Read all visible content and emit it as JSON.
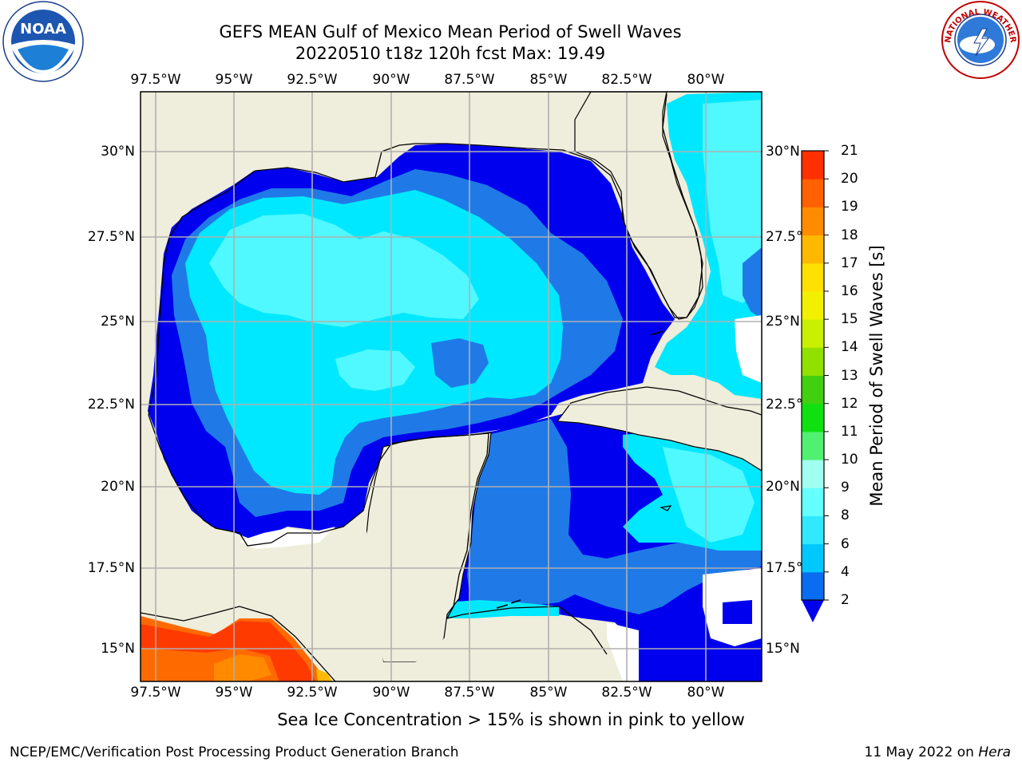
{
  "title_line1": "GEFS MEAN Gulf of Mexico Mean Period of Swell Waves",
  "title_line2": "20220510 t18z 120h fcst   Max: 19.49",
  "lon_ticks": [
    "97.5°W",
    "95°W",
    "92.5°W",
    "90°W",
    "87.5°W",
    "85°W",
    "82.5°W",
    "80°W"
  ],
  "lat_ticks": [
    "30°N",
    "27.5°N",
    "25°N",
    "22.5°N",
    "20°N",
    "17.5°N",
    "15°N"
  ],
  "colorbar": {
    "label": "Mean Period of Swell Waves [s]",
    "ticks": [
      "2",
      "4",
      "6",
      "8",
      "9",
      "10",
      "11",
      "12",
      "13",
      "14",
      "15",
      "16",
      "17",
      "18",
      "19",
      "20",
      "21"
    ],
    "colors": [
      "#0a6cf0",
      "#00c8ff",
      "#30e8ff",
      "#66ffff",
      "#a0fff0",
      "#50f070",
      "#10e010",
      "#40d010",
      "#90e000",
      "#c8f000",
      "#f0f000",
      "#ffe000",
      "#ffb800",
      "#ff8c00",
      "#ff6000",
      "#ff3000",
      "#ff0000"
    ],
    "under_color": "#0000ee"
  },
  "legend_note": "Sea Ice Concentration > 15% is shown in pink to yellow",
  "credit": "NCEP/EMC/Verification Post Processing Product Generation Branch",
  "date_text": "11 May 2022 on ",
  "host": "Hera",
  "logos": {
    "left": "NOAA",
    "right": "NATIONAL WEATHER SERVICE"
  },
  "colors": {
    "land": "#efeddb",
    "deep_blue": "#0000ee",
    "mid_blue": "#1f7ae8",
    "cyan": "#00e8ff",
    "light_cyan": "#50f8ff",
    "orange": "#ff6a00",
    "red_orange": "#ff3a00",
    "grid": "#b0b0b0"
  }
}
